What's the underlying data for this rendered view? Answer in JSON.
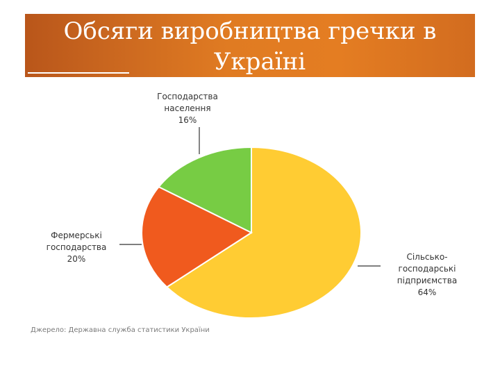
{
  "slide": {
    "title_line1": "Обсяги виробництва гречки в",
    "title_line2": "Україні",
    "source": "Джерело: Державна служба статистики України"
  },
  "colors": {
    "title_bar": "#e07b22",
    "title_text": "#ffffff"
  },
  "chart_data": {
    "type": "pie",
    "title": "",
    "slices": [
      {
        "label_lines": [
          "Сільсько-",
          "господарські",
          "підприємства",
          "64%"
        ],
        "value": 64,
        "color": "#ffcc33"
      },
      {
        "label_lines": [
          "Фермерські",
          "господарства",
          "20%"
        ],
        "value": 20,
        "color": "#f05a1e"
      },
      {
        "label_lines": [
          "Господарства",
          "населення",
          "16%"
        ],
        "value": 16,
        "color": "#77cc44"
      }
    ]
  }
}
